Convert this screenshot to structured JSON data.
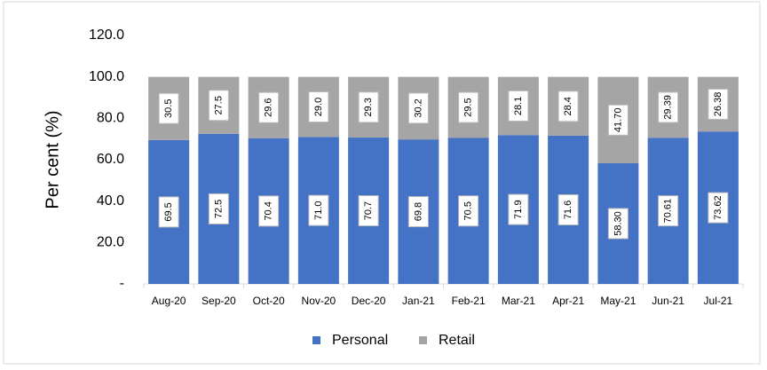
{
  "chart_data": {
    "type": "stacked_bar",
    "y_label": "Per cent (%)",
    "categories": [
      "Aug-20",
      "Sep-20",
      "Oct-20",
      "Nov-20",
      "Dec-20",
      "Jan-21",
      "Feb-21",
      "Mar-21",
      "Apr-21",
      "May-21",
      "Jun-21",
      "Jul-21"
    ],
    "series": [
      {
        "name": "Personal",
        "color": "#4472c4",
        "values": [
          69.5,
          72.5,
          70.4,
          71.0,
          70.7,
          69.8,
          70.5,
          71.9,
          71.6,
          58.3,
          70.61,
          73.62
        ],
        "value_labels": [
          "69.5",
          "72.5",
          "70.4",
          "71.0",
          "70.7",
          "69.8",
          "70.5",
          "71.9",
          "71.6",
          "58.30",
          "70.61",
          "73.62"
        ]
      },
      {
        "name": "Retail",
        "color": "#a5a5a5",
        "values": [
          30.5,
          27.5,
          29.6,
          29.0,
          29.3,
          30.2,
          29.5,
          28.1,
          28.4,
          41.7,
          29.39,
          26.38
        ],
        "value_labels": [
          "30.5",
          "27.5",
          "29.6",
          "29.0",
          "29.3",
          "30.2",
          "29.5",
          "28.1",
          "28.4",
          "41.70",
          "29.39",
          "26.38"
        ]
      }
    ],
    "ylim": [
      0,
      120
    ],
    "yticks": [
      {
        "value": 0,
        "label": "-"
      },
      {
        "value": 20,
        "label": "20.0"
      },
      {
        "value": 40,
        "label": "40.0"
      },
      {
        "value": 60,
        "label": "60.0"
      },
      {
        "value": 80,
        "label": "80.0"
      },
      {
        "value": 100,
        "label": "100.0"
      },
      {
        "value": 120,
        "label": "120.0"
      }
    ],
    "legend": "bottom"
  }
}
